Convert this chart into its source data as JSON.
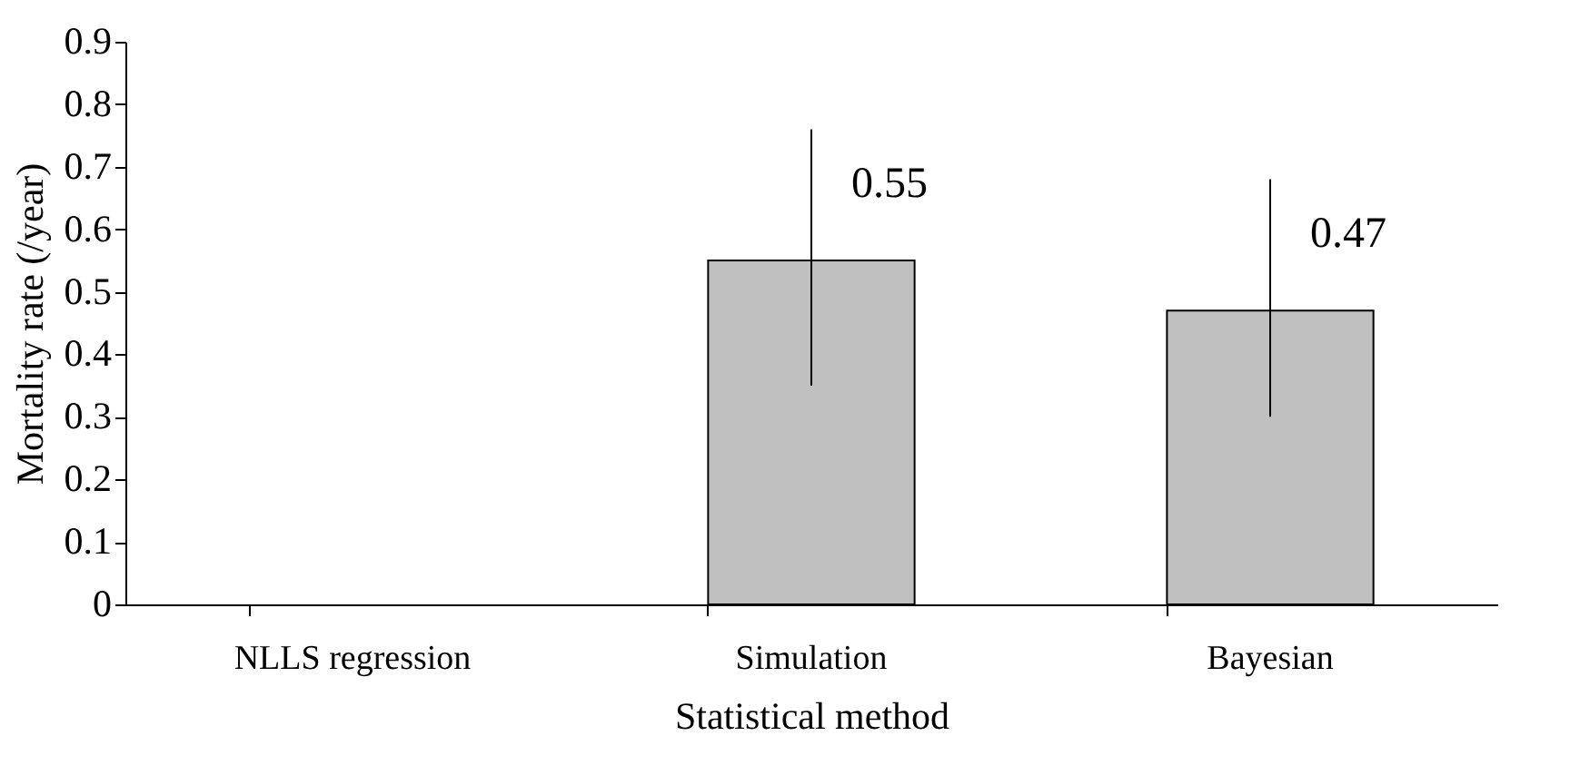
{
  "chart_data": {
    "type": "bar",
    "xlabel": "Statistical method",
    "ylabel": "Mortality rate (/year)",
    "categories": [
      "NLLS regression",
      "Simulation",
      "Bayesian"
    ],
    "values": [
      null,
      0.55,
      0.47
    ],
    "errors": [
      null,
      [
        0.35,
        0.76
      ],
      [
        0.3,
        0.68
      ]
    ],
    "value_labels": [
      null,
      "0.55",
      "0.47"
    ],
    "color": "#c0c0c0",
    "ylim": [
      0,
      0.9
    ],
    "yticks": [
      0,
      0.1,
      0.2,
      0.3,
      0.4,
      0.5,
      0.6,
      0.7,
      0.8,
      0.9
    ],
    "grid": false
  }
}
